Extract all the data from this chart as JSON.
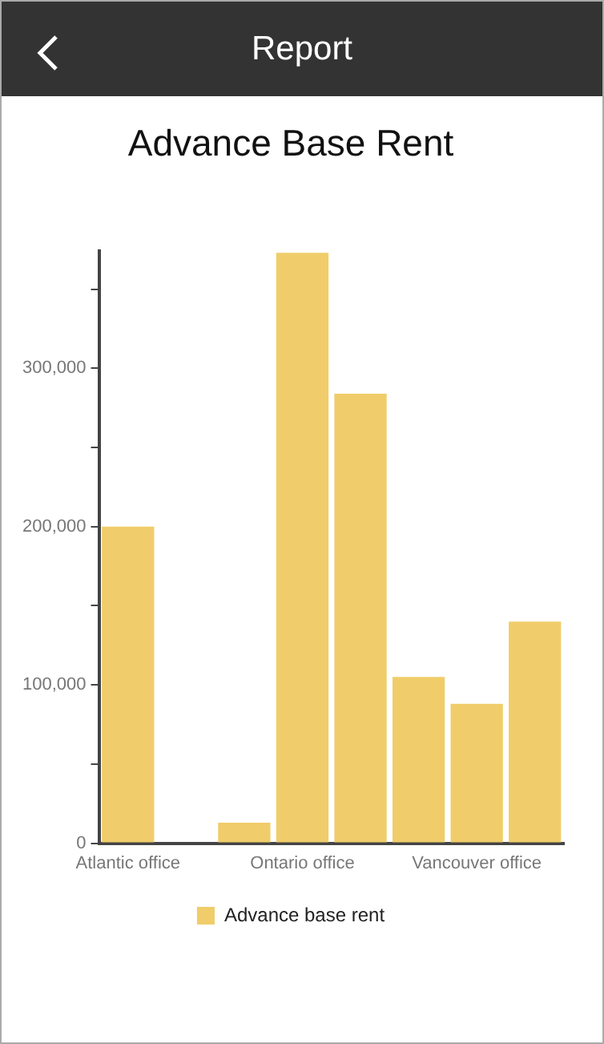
{
  "chart_data": {
    "type": "bar",
    "title": "Advance Base Rent",
    "annotations": [
      "Report"
    ],
    "categories": [
      "Atlantic office",
      null,
      null,
      "Ontario office",
      null,
      null,
      "Vancouver office",
      null
    ],
    "series": [
      {
        "name": "Advance base rent",
        "color": "#f0cd6a",
        "values": [
          200000,
          null,
          13000,
          373000,
          284000,
          105000,
          88000,
          140000
        ]
      }
    ],
    "ylim": [
      0,
      374000
    ],
    "yticks": [
      0,
      {
        "value": 50000,
        "label": null
      },
      {
        "value": 100000,
        "label": "100,000"
      },
      {
        "value": 150000,
        "label": null
      },
      {
        "value": 200000,
        "label": "200,000"
      },
      {
        "value": 250000,
        "label": null
      },
      {
        "value": 300000,
        "label": "300,000"
      },
      {
        "value": 350000,
        "label": null
      }
    ],
    "grid": false,
    "legend": "bottom"
  }
}
